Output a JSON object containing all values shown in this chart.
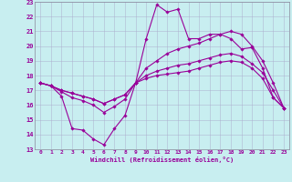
{
  "background_color": "#c8eef0",
  "line_color": "#990099",
  "grid_color": "#aaaacc",
  "xlim": [
    -0.5,
    23.5
  ],
  "ylim": [
    13,
    23
  ],
  "xticks": [
    0,
    1,
    2,
    3,
    4,
    5,
    6,
    7,
    8,
    9,
    10,
    11,
    12,
    13,
    14,
    15,
    16,
    17,
    18,
    19,
    20,
    21,
    22,
    23
  ],
  "yticks": [
    13,
    14,
    15,
    16,
    17,
    18,
    19,
    20,
    21,
    22,
    23
  ],
  "xlabel": "Windchill (Refroidissement éolien,°C)",
  "line1_x": [
    0,
    1,
    2,
    3,
    4,
    5,
    6,
    7,
    8,
    9,
    10,
    11,
    12,
    13,
    14,
    15,
    16,
    17,
    18,
    19,
    20,
    21,
    22,
    23
  ],
  "line1_y": [
    17.5,
    17.3,
    16.6,
    14.4,
    14.3,
    13.7,
    13.3,
    14.4,
    15.3,
    17.5,
    20.5,
    22.8,
    22.3,
    22.5,
    20.5,
    20.5,
    20.8,
    20.8,
    20.5,
    19.8,
    19.9,
    18.5,
    16.5,
    15.8
  ],
  "line2_x": [
    0,
    1,
    2,
    3,
    4,
    5,
    6,
    7,
    8,
    9,
    10,
    11,
    12,
    13,
    14,
    15,
    16,
    17,
    18,
    19,
    20,
    21,
    22,
    23
  ],
  "line2_y": [
    17.5,
    17.3,
    16.9,
    16.5,
    16.3,
    16.0,
    15.5,
    15.9,
    16.4,
    17.5,
    18.5,
    19.0,
    19.5,
    19.8,
    20.0,
    20.2,
    20.5,
    20.8,
    21.0,
    20.8,
    20.0,
    19.0,
    17.5,
    15.8
  ],
  "line3_x": [
    0,
    1,
    2,
    3,
    4,
    5,
    6,
    7,
    8,
    9,
    10,
    11,
    12,
    13,
    14,
    15,
    16,
    17,
    18,
    19,
    20,
    21,
    22,
    23
  ],
  "line3_y": [
    17.5,
    17.3,
    17.0,
    16.8,
    16.6,
    16.4,
    16.1,
    16.4,
    16.7,
    17.5,
    18.0,
    18.3,
    18.5,
    18.7,
    18.8,
    19.0,
    19.2,
    19.4,
    19.5,
    19.3,
    18.8,
    18.2,
    17.0,
    15.8
  ],
  "line4_x": [
    0,
    1,
    2,
    3,
    4,
    5,
    6,
    7,
    8,
    9,
    10,
    11,
    12,
    13,
    14,
    15,
    16,
    17,
    18,
    19,
    20,
    21,
    22,
    23
  ],
  "line4_y": [
    17.5,
    17.3,
    17.0,
    16.8,
    16.6,
    16.4,
    16.1,
    16.4,
    16.7,
    17.5,
    17.8,
    18.0,
    18.1,
    18.2,
    18.3,
    18.5,
    18.7,
    18.9,
    19.0,
    18.9,
    18.5,
    17.8,
    16.5,
    15.8
  ]
}
